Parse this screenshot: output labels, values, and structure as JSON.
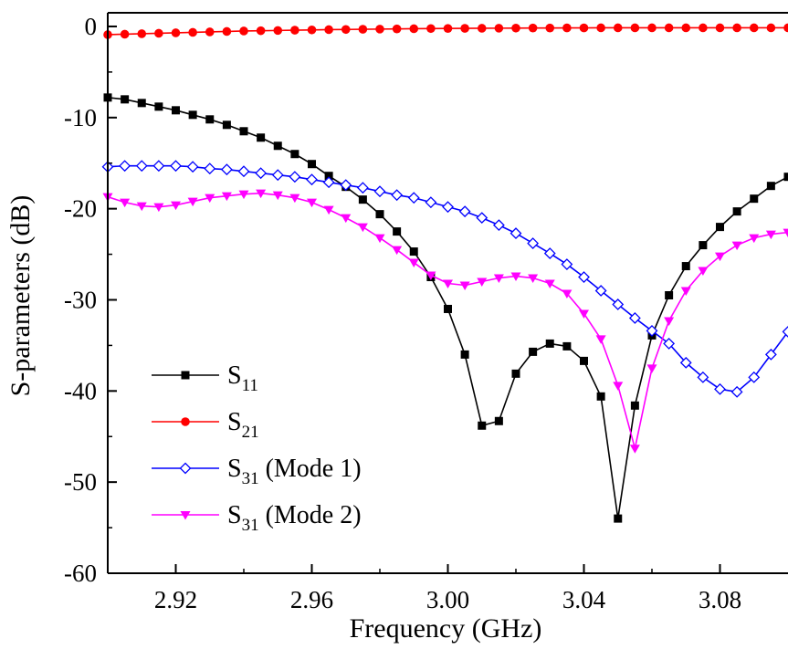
{
  "chart_data": {
    "type": "line",
    "xlabel": "Frequency (GHz)",
    "ylabel": "S-parameters (dB)",
    "xlim": [
      2.9,
      3.1
    ],
    "ylim": [
      -60,
      1.5
    ],
    "xticks": [
      2.92,
      2.96,
      3.0,
      3.04,
      3.08
    ],
    "xtick_labels": [
      "2.92",
      "2.96",
      "3.00",
      "3.04",
      "3.08"
    ],
    "yticks": [
      0,
      -10,
      -20,
      -30,
      -40,
      -50,
      -60
    ],
    "ytick_labels": [
      "0",
      "-10",
      "-20",
      "-30",
      "-40",
      "-50",
      "-60"
    ],
    "grid": false,
    "legend_position": "bottom-left",
    "series": [
      {
        "name": "S11",
        "label_main": "S",
        "label_sub": "11",
        "label_suffix": "",
        "color": "#000000",
        "marker": "square-filled",
        "x": [
          2.9,
          2.905,
          2.91,
          2.915,
          2.92,
          2.925,
          2.93,
          2.935,
          2.94,
          2.945,
          2.95,
          2.955,
          2.96,
          2.965,
          2.97,
          2.975,
          2.98,
          2.985,
          2.99,
          2.995,
          3.0,
          3.005,
          3.01,
          3.015,
          3.02,
          3.025,
          3.03,
          3.035,
          3.04,
          3.045,
          3.05,
          3.055,
          3.06,
          3.065,
          3.07,
          3.075,
          3.08,
          3.085,
          3.09,
          3.095,
          3.1
        ],
        "y": [
          -7.8,
          -8.0,
          -8.4,
          -8.8,
          -9.2,
          -9.7,
          -10.2,
          -10.8,
          -11.5,
          -12.2,
          -13.1,
          -14.0,
          -15.1,
          -16.4,
          -17.6,
          -19.0,
          -20.6,
          -22.5,
          -24.7,
          -27.5,
          -31.0,
          -36.0,
          -43.8,
          -43.3,
          -38.1,
          -35.7,
          -34.8,
          -35.1,
          -36.7,
          -40.6,
          -54.0,
          -41.6,
          -33.9,
          -29.5,
          -26.3,
          -24.0,
          -22.0,
          -20.3,
          -18.9,
          -17.5,
          -16.5
        ]
      },
      {
        "name": "S21",
        "label_main": "S",
        "label_sub": "21",
        "label_suffix": "",
        "color": "#ff0000",
        "marker": "circle-filled",
        "x": [
          2.9,
          2.905,
          2.91,
          2.915,
          2.92,
          2.925,
          2.93,
          2.935,
          2.94,
          2.945,
          2.95,
          2.955,
          2.96,
          2.965,
          2.97,
          2.975,
          2.98,
          2.985,
          2.99,
          2.995,
          3.0,
          3.005,
          3.01,
          3.015,
          3.02,
          3.025,
          3.03,
          3.035,
          3.04,
          3.045,
          3.05,
          3.055,
          3.06,
          3.065,
          3.07,
          3.075,
          3.08,
          3.085,
          3.09,
          3.095,
          3.1
        ],
        "y": [
          -0.9,
          -0.85,
          -0.8,
          -0.75,
          -0.7,
          -0.65,
          -0.6,
          -0.55,
          -0.5,
          -0.47,
          -0.44,
          -0.41,
          -0.38,
          -0.35,
          -0.33,
          -0.31,
          -0.29,
          -0.27,
          -0.25,
          -0.23,
          -0.22,
          -0.21,
          -0.2,
          -0.19,
          -0.18,
          -0.17,
          -0.17,
          -0.16,
          -0.16,
          -0.15,
          -0.15,
          -0.15,
          -0.15,
          -0.15,
          -0.15,
          -0.15,
          -0.15,
          -0.15,
          -0.15,
          -0.15,
          -0.15
        ]
      },
      {
        "name": "S31 (Mode 1)",
        "label_main": "S",
        "label_sub": "31",
        "label_suffix": " (Mode 1)",
        "color": "#0000ff",
        "marker": "diamond-open",
        "x": [
          2.9,
          2.905,
          2.91,
          2.915,
          2.92,
          2.925,
          2.93,
          2.935,
          2.94,
          2.945,
          2.95,
          2.955,
          2.96,
          2.965,
          2.97,
          2.975,
          2.98,
          2.985,
          2.99,
          2.995,
          3.0,
          3.005,
          3.01,
          3.015,
          3.02,
          3.025,
          3.03,
          3.035,
          3.04,
          3.045,
          3.05,
          3.055,
          3.06,
          3.065,
          3.07,
          3.075,
          3.08,
          3.085,
          3.09,
          3.095,
          3.1
        ],
        "y": [
          -15.4,
          -15.3,
          -15.3,
          -15.3,
          -15.3,
          -15.4,
          -15.6,
          -15.7,
          -15.9,
          -16.1,
          -16.3,
          -16.5,
          -16.8,
          -17.1,
          -17.4,
          -17.7,
          -18.1,
          -18.5,
          -18.8,
          -19.3,
          -19.8,
          -20.3,
          -21.0,
          -21.8,
          -22.7,
          -23.8,
          -24.9,
          -26.1,
          -27.5,
          -29.0,
          -30.5,
          -32.0,
          -33.4,
          -34.8,
          -36.9,
          -38.5,
          -39.8,
          -40.1,
          -38.5,
          -36.0,
          -33.5
        ]
      },
      {
        "name": "S31 (Mode 2)",
        "label_main": "S",
        "label_sub": "31",
        "label_suffix": " (Mode 2)",
        "color": "#ff00ff",
        "marker": "triangle-down-filled",
        "x": [
          2.9,
          2.905,
          2.91,
          2.915,
          2.92,
          2.925,
          2.93,
          2.935,
          2.94,
          2.945,
          2.95,
          2.955,
          2.96,
          2.965,
          2.97,
          2.975,
          2.98,
          2.985,
          2.99,
          2.995,
          3.0,
          3.005,
          3.01,
          3.015,
          3.02,
          3.025,
          3.03,
          3.035,
          3.04,
          3.045,
          3.05,
          3.055,
          3.06,
          3.065,
          3.07,
          3.075,
          3.08,
          3.085,
          3.09,
          3.095,
          3.1
        ],
        "y": [
          -18.7,
          -19.3,
          -19.7,
          -19.8,
          -19.6,
          -19.2,
          -18.8,
          -18.6,
          -18.4,
          -18.3,
          -18.5,
          -18.8,
          -19.3,
          -20.1,
          -21.0,
          -22.0,
          -23.2,
          -24.5,
          -25.9,
          -27.3,
          -28.2,
          -28.4,
          -28.0,
          -27.6,
          -27.4,
          -27.6,
          -28.2,
          -29.3,
          -31.5,
          -34.3,
          -39.4,
          -46.3,
          -37.5,
          -32.3,
          -29.0,
          -26.8,
          -25.2,
          -24.0,
          -23.2,
          -22.8,
          -22.6
        ]
      }
    ]
  }
}
